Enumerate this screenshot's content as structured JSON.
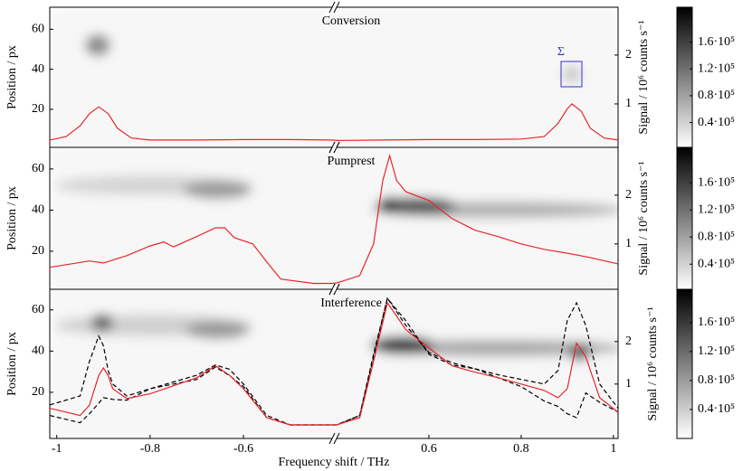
{
  "chart_data": [
    {
      "type": "line",
      "title": "Conversion",
      "annotation": "Σ",
      "ylabel": "Position / px",
      "ylim": [
        1,
        71
      ],
      "yticks": [
        20,
        40,
        60
      ],
      "y2label": "Signal / 10⁶ counts s⁻¹",
      "y2lim": [
        0.11,
        2.98
      ],
      "y2ticks": [
        1,
        2
      ],
      "xlim": [
        -1.015,
        1.01
      ],
      "xbreak": [
        -0.41,
        0.4
      ],
      "colorbar": {
        "clim": [
          3000,
          212000
        ],
        "ticks": [
          {
            "value": 40000,
            "label": "0.4·10⁵"
          },
          {
            "value": 80000,
            "label": "0.8·10⁵"
          },
          {
            "value": 120000,
            "label": "1.2·10⁵"
          },
          {
            "value": 160000,
            "label": "1.6·10⁵"
          }
        ]
      },
      "x": [
        -1.015,
        -0.98,
        -0.95,
        -0.93,
        -0.91,
        -0.89,
        -0.87,
        -0.84,
        -0.8,
        -0.7,
        -0.6,
        -0.5,
        -0.41,
        0.4,
        0.5,
        0.6,
        0.7,
        0.8,
        0.85,
        0.88,
        0.9,
        0.91,
        0.93,
        0.95,
        0.98,
        1.01
      ],
      "series": [
        {
          "color": "#e8262a",
          "dashed": false,
          "axis": "y2",
          "values": [
            0.26,
            0.33,
            0.55,
            0.8,
            0.94,
            0.8,
            0.5,
            0.3,
            0.26,
            0.26,
            0.27,
            0.27,
            0.26,
            0.25,
            0.26,
            0.27,
            0.27,
            0.28,
            0.33,
            0.6,
            0.9,
            1.0,
            0.85,
            0.5,
            0.3,
            0.26
          ]
        }
      ]
    },
    {
      "type": "line",
      "title": "Pumprest",
      "ylabel": "Position / px",
      "ylim": [
        1.5,
        70.5
      ],
      "yticks": [
        20,
        40,
        60
      ],
      "y2label": "Signal / 10⁶ counts s⁻¹",
      "y2lim": [
        0.07,
        2.98
      ],
      "y2ticks": [
        1,
        2
      ],
      "xlim": [
        -1.015,
        1.01
      ],
      "xbreak": [
        -0.41,
        0.4
      ],
      "colorbar": {
        "clim": [
          3000,
          212000
        ],
        "ticks": [
          {
            "value": 40000,
            "label": "0.4·10⁵"
          },
          {
            "value": 80000,
            "label": "0.8·10⁵"
          },
          {
            "value": 120000,
            "label": "1.2·10⁵"
          },
          {
            "value": 160000,
            "label": "1.6·10⁵"
          }
        ]
      },
      "x": [
        -1.015,
        -0.93,
        -0.9,
        -0.85,
        -0.8,
        -0.77,
        -0.75,
        -0.7,
        -0.66,
        -0.64,
        -0.62,
        -0.58,
        -0.55,
        -0.52,
        -0.45,
        -0.41,
        0.4,
        0.45,
        0.48,
        0.5,
        0.515,
        0.53,
        0.55,
        0.6,
        0.65,
        0.7,
        0.75,
        0.8,
        0.85,
        0.9,
        0.95,
        1.01
      ],
      "series": [
        {
          "color": "#e8262a",
          "dashed": false,
          "axis": "y2",
          "values": [
            0.52,
            0.65,
            0.61,
            0.76,
            0.96,
            1.04,
            0.94,
            1.15,
            1.33,
            1.33,
            1.13,
            1.0,
            0.63,
            0.28,
            0.19,
            0.19,
            0.2,
            0.35,
            1.0,
            2.3,
            2.81,
            2.3,
            2.07,
            1.89,
            1.52,
            1.28,
            1.15,
            1.0,
            0.89,
            0.81,
            0.72,
            0.59
          ]
        }
      ]
    },
    {
      "type": "line",
      "title": "Interference",
      "ylabel": "Position / px",
      "ylim": [
        -2.4,
        70
      ],
      "yticks": [
        20,
        40,
        60
      ],
      "y2label": "Signal / 10⁶ counts s⁻¹",
      "y2lim": [
        -0.28,
        3.23
      ],
      "y2ticks": [
        1,
        2
      ],
      "xlim": [
        -1.015,
        1.01
      ],
      "xbreak": [
        -0.41,
        0.4
      ],
      "xlabel": "Frequency shift / THz",
      "xticks": [
        -1,
        -0.8,
        -0.6,
        0.6,
        0.8,
        1
      ],
      "colorbar": {
        "clim": [
          0,
          206000
        ],
        "ticks": [
          {
            "value": 40000,
            "label": "0.4·10⁵"
          },
          {
            "value": 80000,
            "label": "0.8·10⁵"
          },
          {
            "value": 120000,
            "label": "1.2·10⁵"
          },
          {
            "value": 160000,
            "label": "1.6·10⁵"
          }
        ]
      },
      "x": [
        -1.015,
        -0.95,
        -0.93,
        -0.91,
        -0.9,
        -0.89,
        -0.88,
        -0.85,
        -0.8,
        -0.75,
        -0.7,
        -0.66,
        -0.63,
        -0.6,
        -0.55,
        -0.5,
        -0.41,
        0.4,
        0.45,
        0.48,
        0.51,
        0.53,
        0.55,
        0.6,
        0.65,
        0.7,
        0.75,
        0.8,
        0.85,
        0.88,
        0.9,
        0.92,
        0.94,
        0.97,
        1.01
      ],
      "series": [
        {
          "color": "#000000",
          "dashed": true,
          "axis": "y2",
          "values": [
            0.51,
            0.72,
            1.53,
            2.13,
            1.9,
            1.32,
            1.0,
            0.72,
            0.89,
            1.05,
            1.21,
            1.45,
            1.35,
            1.0,
            0.26,
            0.04,
            0.04,
            0.04,
            0.26,
            1.64,
            3.02,
            2.7,
            2.38,
            1.74,
            1.5,
            1.36,
            1.22,
            1.11,
            1.0,
            1.32,
            2.5,
            2.91,
            2.38,
            1.0,
            0.43
          ]
        },
        {
          "color": "#000000",
          "dashed": true,
          "axis": "y2",
          "values": [
            0.26,
            0.09,
            0.3,
            0.55,
            0.68,
            0.66,
            0.64,
            0.62,
            0.89,
            1.0,
            1.11,
            1.4,
            1.2,
            0.94,
            0.21,
            0.04,
            0.04,
            0.04,
            0.26,
            1.7,
            3.02,
            2.75,
            2.49,
            1.7,
            1.45,
            1.36,
            1.15,
            0.94,
            0.6,
            0.47,
            0.3,
            0.21,
            0.79,
            0.57,
            0.34
          ]
        },
        {
          "color": "#e8262a",
          "dashed": false,
          "axis": "y2",
          "values": [
            0.43,
            0.26,
            0.5,
            1.2,
            1.38,
            1.2,
            0.89,
            0.66,
            0.77,
            0.96,
            1.15,
            1.43,
            1.21,
            0.89,
            0.21,
            0.04,
            0.04,
            0.04,
            0.21,
            1.53,
            2.91,
            2.6,
            2.28,
            1.85,
            1.43,
            1.28,
            1.15,
            1.0,
            0.85,
            0.68,
            0.89,
            1.96,
            1.64,
            0.68,
            0.34
          ]
        }
      ]
    }
  ]
}
